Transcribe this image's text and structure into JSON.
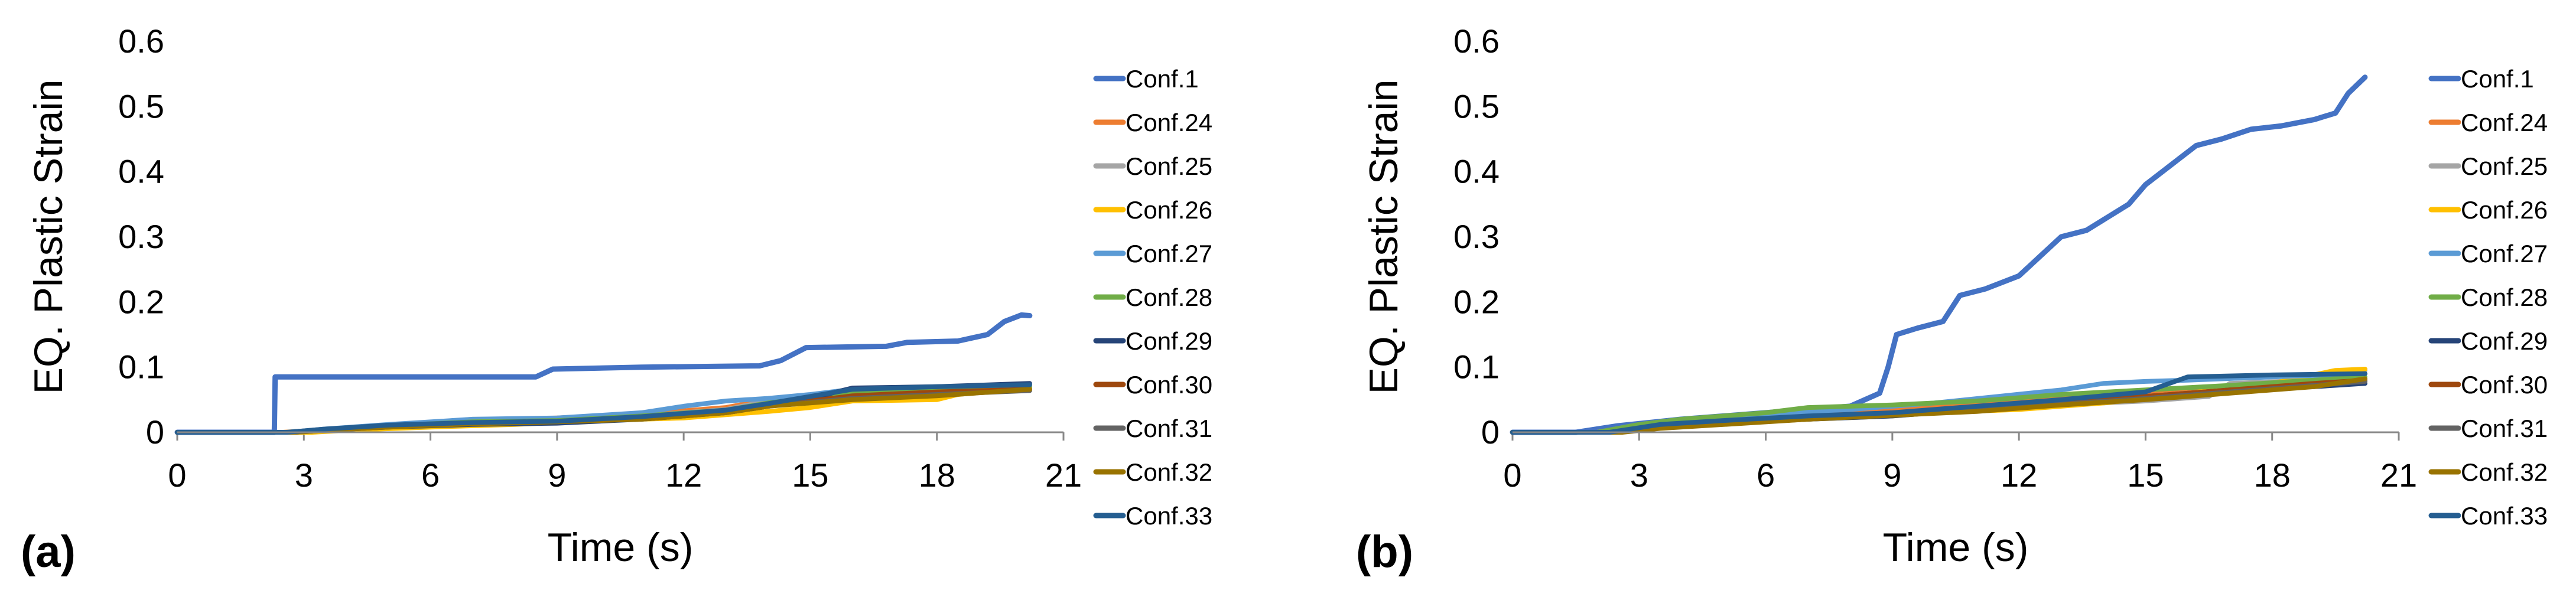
{
  "panels": [
    {
      "id": "a",
      "label": "(a)"
    },
    {
      "id": "b",
      "label": "(b)"
    }
  ],
  "colors": {
    "Conf.1": "#4472C4",
    "Conf.24": "#ED7D31",
    "Conf.25": "#A5A5A5",
    "Conf.26": "#FFC000",
    "Conf.27": "#5B9BD5",
    "Conf.28": "#70AD47",
    "Conf.29": "#264478",
    "Conf.30": "#9E480E",
    "Conf.31": "#636363",
    "Conf.32": "#997300",
    "Conf.33": "#255E91"
  },
  "chart_data": [
    {
      "panel": "(a)",
      "type": "line",
      "title": "",
      "xlabel": "Time (s)",
      "ylabel": "EQ. Plastic Strain",
      "xlim": [
        0,
        21
      ],
      "ylim": [
        0,
        0.6
      ],
      "xticks": [
        0,
        3,
        6,
        9,
        12,
        15,
        18,
        21
      ],
      "xtick_labels": [
        "0",
        "3",
        "6",
        "9",
        "12",
        "15",
        "18",
        "21"
      ],
      "yticks": [
        0,
        0.1,
        0.2,
        0.3,
        0.4,
        0.5,
        0.6
      ],
      "ytick_labels": [
        "0",
        "0.1",
        "0.2",
        "0.3",
        "0.4",
        "0.5",
        "0.6"
      ],
      "legend": "right",
      "series": [
        {
          "name": "Conf.1",
          "x": [
            0,
            2.3,
            2.32,
            8.5,
            8.9,
            11,
            13.8,
            14.3,
            14.9,
            16.8,
            17.3,
            18.5,
            19.2,
            19.6,
            20,
            20.2
          ],
          "y": [
            0,
            0,
            0.085,
            0.085,
            0.097,
            0.1,
            0.102,
            0.11,
            0.13,
            0.132,
            0.138,
            0.14,
            0.15,
            0.17,
            0.18,
            0.179
          ]
        },
        {
          "name": "Conf.24",
          "x": [
            0,
            2.5,
            3.5,
            5,
            7,
            9,
            11,
            13,
            14,
            16,
            18,
            20.2
          ],
          "y": [
            0,
            0,
            0.004,
            0.01,
            0.018,
            0.022,
            0.028,
            0.038,
            0.05,
            0.058,
            0.062,
            0.07
          ]
        },
        {
          "name": "Conf.25",
          "x": [
            0,
            2.6,
            3.5,
            5,
            7,
            9,
            11,
            13,
            14,
            16,
            18,
            20.2
          ],
          "y": [
            0,
            0,
            0.003,
            0.009,
            0.02,
            0.02,
            0.025,
            0.035,
            0.048,
            0.055,
            0.062,
            0.072
          ]
        },
        {
          "name": "Conf.26",
          "x": [
            0,
            3.2,
            4,
            6,
            8,
            10,
            12,
            14,
            15,
            16,
            18,
            18.5,
            20.2
          ],
          "y": [
            0,
            0,
            0.003,
            0.008,
            0.012,
            0.018,
            0.022,
            0.032,
            0.038,
            0.048,
            0.05,
            0.058,
            0.068
          ]
        },
        {
          "name": "Conf.27",
          "x": [
            0,
            2.6,
            3.5,
            5,
            7,
            9,
            11,
            12,
            13,
            14,
            15,
            16,
            18,
            20.2
          ],
          "y": [
            0,
            0,
            0.005,
            0.012,
            0.02,
            0.022,
            0.03,
            0.04,
            0.048,
            0.052,
            0.058,
            0.066,
            0.068,
            0.07
          ]
        },
        {
          "name": "Conf.28",
          "x": [
            0,
            2.6,
            3.5,
            5,
            7,
            9,
            11,
            13,
            14,
            16,
            18,
            20.2
          ],
          "y": [
            0,
            0,
            0.004,
            0.01,
            0.016,
            0.018,
            0.025,
            0.034,
            0.045,
            0.06,
            0.066,
            0.07
          ]
        },
        {
          "name": "Conf.29",
          "x": [
            0,
            2.8,
            3.5,
            5,
            7,
            9,
            11,
            13,
            14,
            15,
            15.5,
            16,
            18,
            20.2
          ],
          "y": [
            0,
            0,
            0.003,
            0.008,
            0.012,
            0.014,
            0.02,
            0.03,
            0.04,
            0.05,
            0.06,
            0.068,
            0.07,
            0.075
          ]
        },
        {
          "name": "Conf.30",
          "x": [
            0,
            2.7,
            3.5,
            5,
            7,
            9,
            11,
            13,
            14,
            16,
            18,
            20.2
          ],
          "y": [
            0,
            0,
            0.004,
            0.01,
            0.014,
            0.016,
            0.022,
            0.03,
            0.04,
            0.056,
            0.062,
            0.066
          ]
        },
        {
          "name": "Conf.31",
          "x": [
            0,
            2.7,
            3.5,
            5,
            7,
            9,
            11,
            13,
            14,
            16,
            18,
            20.2
          ],
          "y": [
            0,
            0,
            0.004,
            0.009,
            0.014,
            0.016,
            0.021,
            0.03,
            0.04,
            0.052,
            0.058,
            0.064
          ]
        },
        {
          "name": "Conf.32",
          "x": [
            0,
            2.8,
            3.5,
            5,
            7,
            9,
            11,
            13,
            14,
            16,
            18,
            20.2
          ],
          "y": [
            0,
            0,
            0.003,
            0.008,
            0.013,
            0.016,
            0.02,
            0.03,
            0.04,
            0.05,
            0.056,
            0.066
          ]
        },
        {
          "name": "Conf.33",
          "x": [
            0,
            2.6,
            3.5,
            5,
            7,
            9,
            11,
            13,
            14,
            15,
            16,
            18,
            20.2
          ],
          "y": [
            0,
            0,
            0.005,
            0.011,
            0.015,
            0.017,
            0.024,
            0.034,
            0.044,
            0.055,
            0.066,
            0.07,
            0.073
          ]
        }
      ]
    },
    {
      "panel": "(b)",
      "type": "line",
      "title": "",
      "xlabel": "Time (s)",
      "ylabel": "EQ. Plastic Strain",
      "xlim": [
        0,
        21
      ],
      "ylim": [
        0,
        0.6
      ],
      "xticks": [
        0,
        3,
        6,
        9,
        12,
        15,
        18,
        21
      ],
      "xtick_labels": [
        "0",
        "3",
        "6",
        "9",
        "12",
        "15",
        "18",
        "21"
      ],
      "yticks": [
        0,
        0.1,
        0.2,
        0.3,
        0.4,
        0.5,
        0.6
      ],
      "ytick_labels": [
        "0",
        "0.1",
        "0.2",
        "0.3",
        "0.4",
        "0.5",
        "0.6"
      ],
      "legend": "right",
      "series": [
        {
          "name": "Conf.1",
          "x": [
            0,
            1.5,
            2.5,
            4,
            6,
            8,
            8.7,
            8.9,
            9.1,
            9.6,
            10.2,
            10.6,
            11.2,
            12,
            12.5,
            13,
            13.6,
            14.1,
            14.6,
            15,
            15.6,
            16.2,
            16.8,
            17.5,
            18.2,
            19,
            19.5,
            19.8,
            20.2
          ],
          "y": [
            0,
            0,
            0.01,
            0.02,
            0.03,
            0.04,
            0.06,
            0.1,
            0.15,
            0.16,
            0.17,
            0.21,
            0.22,
            0.24,
            0.27,
            0.3,
            0.31,
            0.33,
            0.35,
            0.38,
            0.41,
            0.44,
            0.45,
            0.465,
            0.47,
            0.48,
            0.49,
            0.52,
            0.545
          ]
        },
        {
          "name": "Conf.24",
          "x": [
            0,
            2,
            3,
            5,
            7,
            9,
            11,
            13,
            15,
            17,
            19,
            20.2
          ],
          "y": [
            0,
            0,
            0.01,
            0.02,
            0.03,
            0.035,
            0.045,
            0.055,
            0.06,
            0.07,
            0.08,
            0.09
          ]
        },
        {
          "name": "Conf.25",
          "x": [
            0,
            2.2,
            3,
            5,
            7,
            9,
            11,
            13,
            15,
            16.5,
            17,
            19,
            20.2
          ],
          "y": [
            0,
            0,
            0.008,
            0.015,
            0.022,
            0.028,
            0.035,
            0.042,
            0.048,
            0.055,
            0.075,
            0.08,
            0.095
          ]
        },
        {
          "name": "Conf.26",
          "x": [
            0,
            2.5,
            3.5,
            5,
            7,
            9,
            10,
            12,
            14,
            15,
            16,
            18,
            19.5,
            20.2
          ],
          "y": [
            0,
            0,
            0.008,
            0.013,
            0.02,
            0.025,
            0.03,
            0.035,
            0.045,
            0.052,
            0.06,
            0.075,
            0.095,
            0.097
          ]
        },
        {
          "name": "Conf.27",
          "x": [
            0,
            2,
            3,
            4,
            6,
            8,
            9,
            10,
            11.5,
            13,
            14,
            15,
            16,
            18,
            20.2
          ],
          "y": [
            0,
            0,
            0.012,
            0.02,
            0.028,
            0.035,
            0.04,
            0.045,
            0.055,
            0.065,
            0.075,
            0.078,
            0.08,
            0.085,
            0.09
          ]
        },
        {
          "name": "Conf.28",
          "x": [
            0,
            2,
            3,
            4,
            6,
            7,
            9,
            11,
            13,
            15,
            17,
            19,
            20.2
          ],
          "y": [
            0,
            0,
            0.012,
            0.02,
            0.03,
            0.038,
            0.042,
            0.048,
            0.058,
            0.065,
            0.072,
            0.08,
            0.085
          ]
        },
        {
          "name": "Conf.29",
          "x": [
            0,
            2.5,
            3.5,
            5,
            7,
            9,
            11,
            13,
            15,
            17,
            19,
            20.2
          ],
          "y": [
            0,
            0,
            0.008,
            0.015,
            0.02,
            0.025,
            0.035,
            0.045,
            0.055,
            0.065,
            0.07,
            0.075
          ]
        },
        {
          "name": "Conf.30",
          "x": [
            0,
            2.4,
            3.5,
            5,
            7,
            9,
            11,
            13,
            15,
            17,
            19,
            20.2
          ],
          "y": [
            0,
            0,
            0.007,
            0.014,
            0.022,
            0.028,
            0.036,
            0.045,
            0.055,
            0.065,
            0.075,
            0.08
          ]
        },
        {
          "name": "Conf.31",
          "x": [
            0,
            2.4,
            3.5,
            5,
            7,
            9,
            11,
            13,
            15,
            17,
            19,
            20.2
          ],
          "y": [
            0,
            0,
            0.007,
            0.013,
            0.02,
            0.027,
            0.034,
            0.043,
            0.052,
            0.062,
            0.072,
            0.078
          ]
        },
        {
          "name": "Conf.32",
          "x": [
            0,
            2.6,
            3.5,
            5,
            7,
            9,
            11,
            13,
            15,
            17,
            19,
            20.2
          ],
          "y": [
            0,
            0,
            0.006,
            0.012,
            0.02,
            0.026,
            0.032,
            0.042,
            0.05,
            0.06,
            0.07,
            0.082
          ]
        },
        {
          "name": "Conf.33",
          "x": [
            0,
            2.3,
            3.5,
            5,
            7,
            9,
            11,
            13,
            15,
            16,
            18,
            20.2
          ],
          "y": [
            0,
            0,
            0.012,
            0.018,
            0.025,
            0.03,
            0.04,
            0.05,
            0.062,
            0.085,
            0.088,
            0.09
          ]
        }
      ]
    }
  ]
}
